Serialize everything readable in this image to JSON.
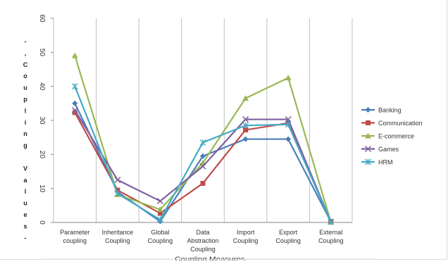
{
  "chart_data": {
    "type": "line",
    "xlabel": "-------------------------------------------------Coupling Measures------------------------------------------------",
    "ylabel": "- , C o u p l i n g   V a l u e s -",
    "ylim": [
      0,
      60
    ],
    "yticks": [
      "0",
      "10",
      "20",
      "30",
      "40",
      "50",
      "60"
    ],
    "grid": "vertical",
    "legend": "right",
    "categories": [
      [
        "Parameter",
        "coupling"
      ],
      [
        "Inheritance",
        "Coupling"
      ],
      [
        "Global",
        "Coupling"
      ],
      [
        "Data",
        "Abstraction",
        "Coupling"
      ],
      [
        "Import",
        "Coupling"
      ],
      [
        "Export",
        "Coupling"
      ],
      [
        "External",
        "Coupling"
      ]
    ],
    "series": [
      {
        "name": "Banking",
        "color": "#4a7ebb",
        "marker": "diamond",
        "values": [
          35,
          9,
          0.3,
          19.5,
          24.5,
          24.5,
          0.2
        ]
      },
      {
        "name": "Communication",
        "color": "#be4b48",
        "marker": "square",
        "values": [
          32.3,
          9.5,
          2.7,
          11.5,
          27.2,
          29.2,
          0.3
        ]
      },
      {
        "name": "E-commerce",
        "color": "#98b954",
        "marker": "triangle",
        "values": [
          49,
          8.2,
          3.8,
          17.5,
          36.5,
          42.5,
          0.1
        ]
      },
      {
        "name": "Games",
        "color": "#7d60a0",
        "marker": "x",
        "values": [
          33,
          12.5,
          6.3,
          16.5,
          30.3,
          30.3,
          0.2
        ]
      },
      {
        "name": "HRM",
        "color": "#46aac5",
        "marker": "star",
        "values": [
          40,
          8.5,
          0.8,
          23.5,
          28.5,
          28.8,
          0.2
        ]
      }
    ]
  }
}
